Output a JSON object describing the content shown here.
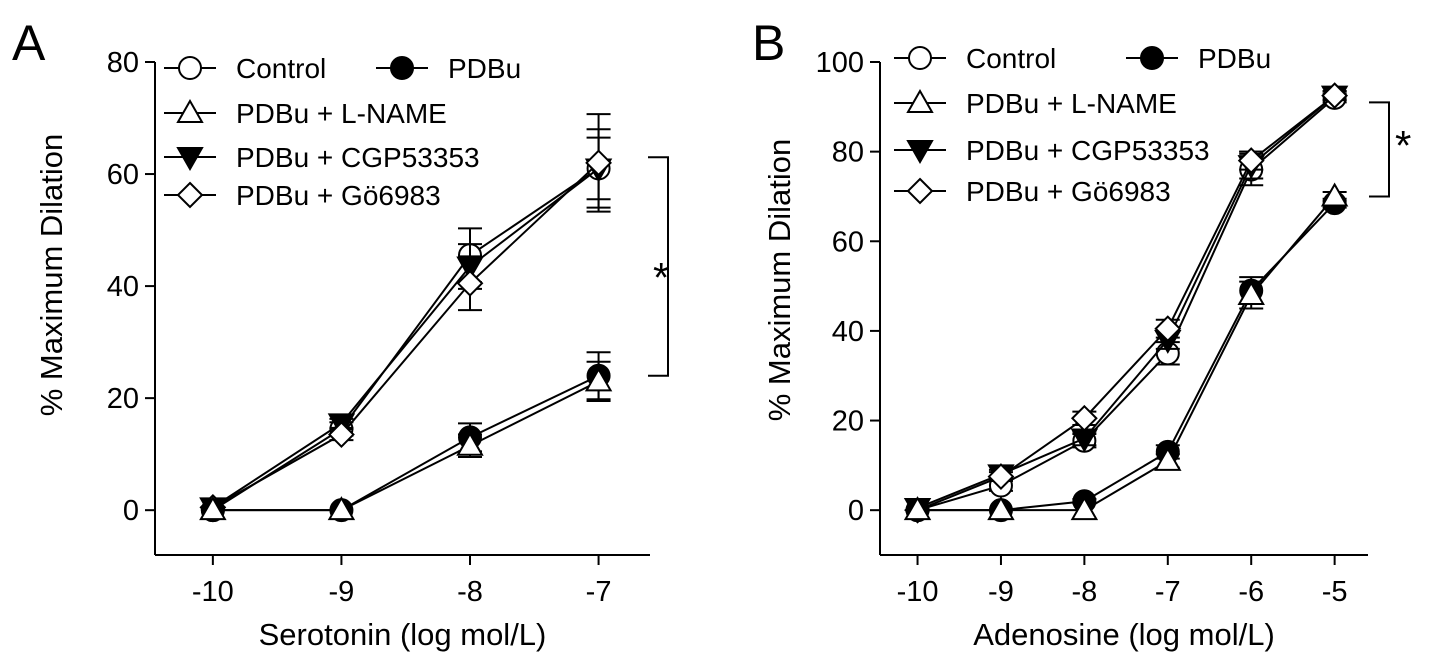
{
  "figure": {
    "background": "#ffffff",
    "stroke_color": "#000000"
  },
  "chart_data": [
    {
      "type": "line",
      "panel_label": "A",
      "xlabel": "Serotonin (log mol/L)",
      "ylabel": "% Maximum Dilation",
      "xlim": [
        -10.45,
        -6.6
      ],
      "ylim": [
        -8,
        80
      ],
      "xticks": [
        -10,
        -9,
        -8,
        -7
      ],
      "xtick_labels": [
        "-10",
        "-9",
        "-8",
        "-7"
      ],
      "yticks": [
        0,
        20,
        40,
        60,
        80
      ],
      "ytick_labels": [
        "0",
        "20",
        "40",
        "60",
        "80"
      ],
      "grid": false,
      "legend": {
        "rows": [
          [
            "Control",
            "PDBu"
          ],
          [
            "PDBu + L-NAME"
          ],
          [
            "PDBu + CGP53353"
          ],
          [
            "PDBu + Gö6983"
          ]
        ]
      },
      "significance": {
        "label": "*",
        "y_top": 63,
        "y_bottom": 24
      },
      "series": [
        {
          "name": "Control",
          "marker": "circle-open",
          "x": [
            -10,
            -9,
            -8,
            -7
          ],
          "y": [
            0,
            14.5,
            45.5,
            61
          ],
          "err": [
            0,
            1.2,
            4.8,
            7
          ]
        },
        {
          "name": "PDBu + CGP53353",
          "marker": "triangle-down-filled",
          "x": [
            -10,
            -9,
            -8,
            -7
          ],
          "y": [
            0.5,
            15.5,
            43.5,
            61
          ],
          "err": [
            0,
            0.8,
            4,
            5.5
          ]
        },
        {
          "name": "PDBu + Gö6983",
          "marker": "diamond-open",
          "x": [
            -10,
            -9,
            -8,
            -7
          ],
          "y": [
            0.5,
            13.5,
            40.5,
            62
          ],
          "err": [
            0,
            1,
            4.8,
            8.7
          ]
        },
        {
          "name": "PDBu",
          "marker": "circle-filled",
          "x": [
            -10,
            -9,
            -8,
            -7
          ],
          "y": [
            0,
            0,
            13,
            24
          ],
          "err": [
            0,
            0,
            2.5,
            4.2
          ]
        },
        {
          "name": "PDBu + L-NAME",
          "marker": "triangle-up-open",
          "x": [
            -10,
            -9,
            -8,
            -7
          ],
          "y": [
            0,
            0,
            11.5,
            23
          ],
          "err": [
            0,
            0,
            2,
            3.5
          ]
        }
      ]
    },
    {
      "type": "line",
      "panel_label": "B",
      "xlabel": "Adenosine (log mol/L)",
      "ylabel": "% Maximum Dilation",
      "xlim": [
        -10.45,
        -4.6
      ],
      "ylim": [
        -10,
        100
      ],
      "xticks": [
        -10,
        -9,
        -8,
        -7,
        -6,
        -5
      ],
      "xtick_labels": [
        "-10",
        "-9",
        "-8",
        "-7",
        "-6",
        "-5"
      ],
      "yticks": [
        0,
        20,
        40,
        60,
        80,
        100
      ],
      "ytick_labels": [
        "0",
        "20",
        "40",
        "60",
        "80",
        "100"
      ],
      "grid": false,
      "legend": {
        "rows": [
          [
            "Control",
            "PDBu"
          ],
          [
            "PDBu + L-NAME"
          ],
          [
            "PDBu + CGP53353"
          ],
          [
            "PDBu + Gö6983"
          ]
        ]
      },
      "significance": {
        "label": "*",
        "y_top": 91,
        "y_bottom": 70
      },
      "series": [
        {
          "name": "Control",
          "marker": "circle-open",
          "x": [
            -10,
            -9,
            -8,
            -7,
            -6,
            -5
          ],
          "y": [
            0,
            5.5,
            15.5,
            35,
            76,
            92
          ],
          "err": [
            0,
            1.2,
            1.5,
            2.5,
            3.5,
            1
          ]
        },
        {
          "name": "PDBu + CGP53353",
          "marker": "triangle-down-filled",
          "x": [
            -10,
            -9,
            -8,
            -7,
            -6,
            -5
          ],
          "y": [
            0.5,
            8,
            16,
            38,
            77,
            92.5
          ],
          "err": [
            0,
            1,
            1.5,
            2,
            3,
            1
          ]
        },
        {
          "name": "PDBu + Gö6983",
          "marker": "diamond-open",
          "x": [
            -10,
            -9,
            -8,
            -7,
            -6,
            -5
          ],
          "y": [
            0,
            7.5,
            20.5,
            40.5,
            78,
            92.5
          ],
          "err": [
            0,
            1,
            1.5,
            2,
            2,
            1
          ]
        },
        {
          "name": "PDBu",
          "marker": "circle-filled",
          "x": [
            -10,
            -9,
            -8,
            -7,
            -6,
            -5
          ],
          "y": [
            0,
            0,
            2,
            13,
            49,
            68.5
          ],
          "err": [
            0,
            0,
            0.5,
            1.5,
            3,
            1
          ]
        },
        {
          "name": "PDBu + L-NAME",
          "marker": "triangle-up-open",
          "x": [
            -10,
            -9,
            -8,
            -7,
            -6,
            -5
          ],
          "y": [
            0,
            0,
            0,
            11,
            48,
            70
          ],
          "err": [
            0,
            0,
            0,
            1.5,
            3,
            1
          ]
        }
      ]
    }
  ]
}
